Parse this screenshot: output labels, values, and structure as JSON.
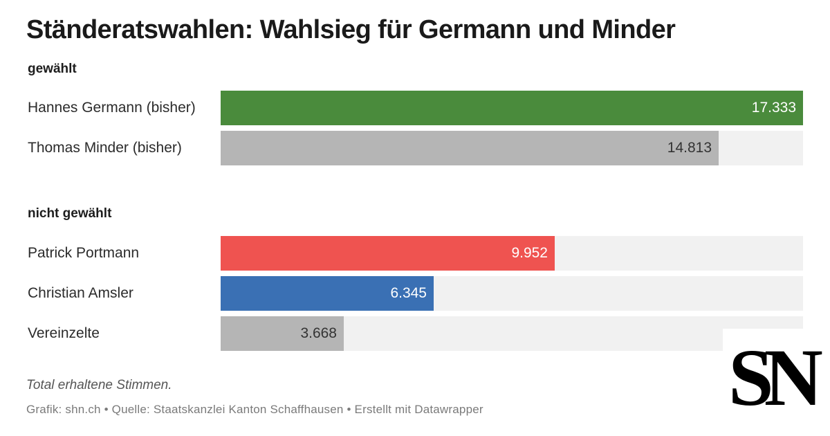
{
  "title": "Ständeratswahlen: Wahlsieg für Germann und Minder",
  "groups": [
    {
      "label": "gewählt",
      "rows": [
        {
          "name": "Hannes Germann (bisher)",
          "value": 17333,
          "value_label": "17.333",
          "color": "#4a8b3c",
          "text_color": "#ffffff"
        },
        {
          "name": "Thomas Minder (bisher)",
          "value": 14813,
          "value_label": "14.813",
          "color": "#b5b5b5",
          "text_color": "#333333"
        }
      ]
    },
    {
      "label": "nicht gewählt",
      "rows": [
        {
          "name": "Patrick Portmann",
          "value": 9952,
          "value_label": "9.952",
          "color": "#ef5350",
          "text_color": "#ffffff"
        },
        {
          "name": "Christian Amsler",
          "value": 6345,
          "value_label": "6.345",
          "color": "#3a70b4",
          "text_color": "#ffffff"
        },
        {
          "name": "Vereinzelte",
          "value": 3668,
          "value_label": "3.668",
          "color": "#b5b5b5",
          "text_color": "#333333"
        }
      ]
    }
  ],
  "note": "Total erhaltene Stimmen.",
  "footer": "Grafik: shn.ch • Quelle: Staatskanzlei Kanton Schaffhausen • Erstellt mit Datawrapper",
  "logo_text": "SN",
  "chart_data": {
    "type": "bar",
    "orientation": "horizontal",
    "title": "Ständeratswahlen: Wahlsieg für Germann und Minder",
    "categories": [
      "Hannes Germann (bisher)",
      "Thomas Minder (bisher)",
      "Patrick Portmann",
      "Christian Amsler",
      "Vereinzelte"
    ],
    "values": [
      17333,
      14813,
      9952,
      6345,
      3668
    ],
    "groups": [
      "gewählt",
      "gewählt",
      "nicht gewählt",
      "nicht gewählt",
      "nicht gewählt"
    ],
    "xlim": [
      0,
      17333
    ],
    "grid": false,
    "legend": "none"
  }
}
